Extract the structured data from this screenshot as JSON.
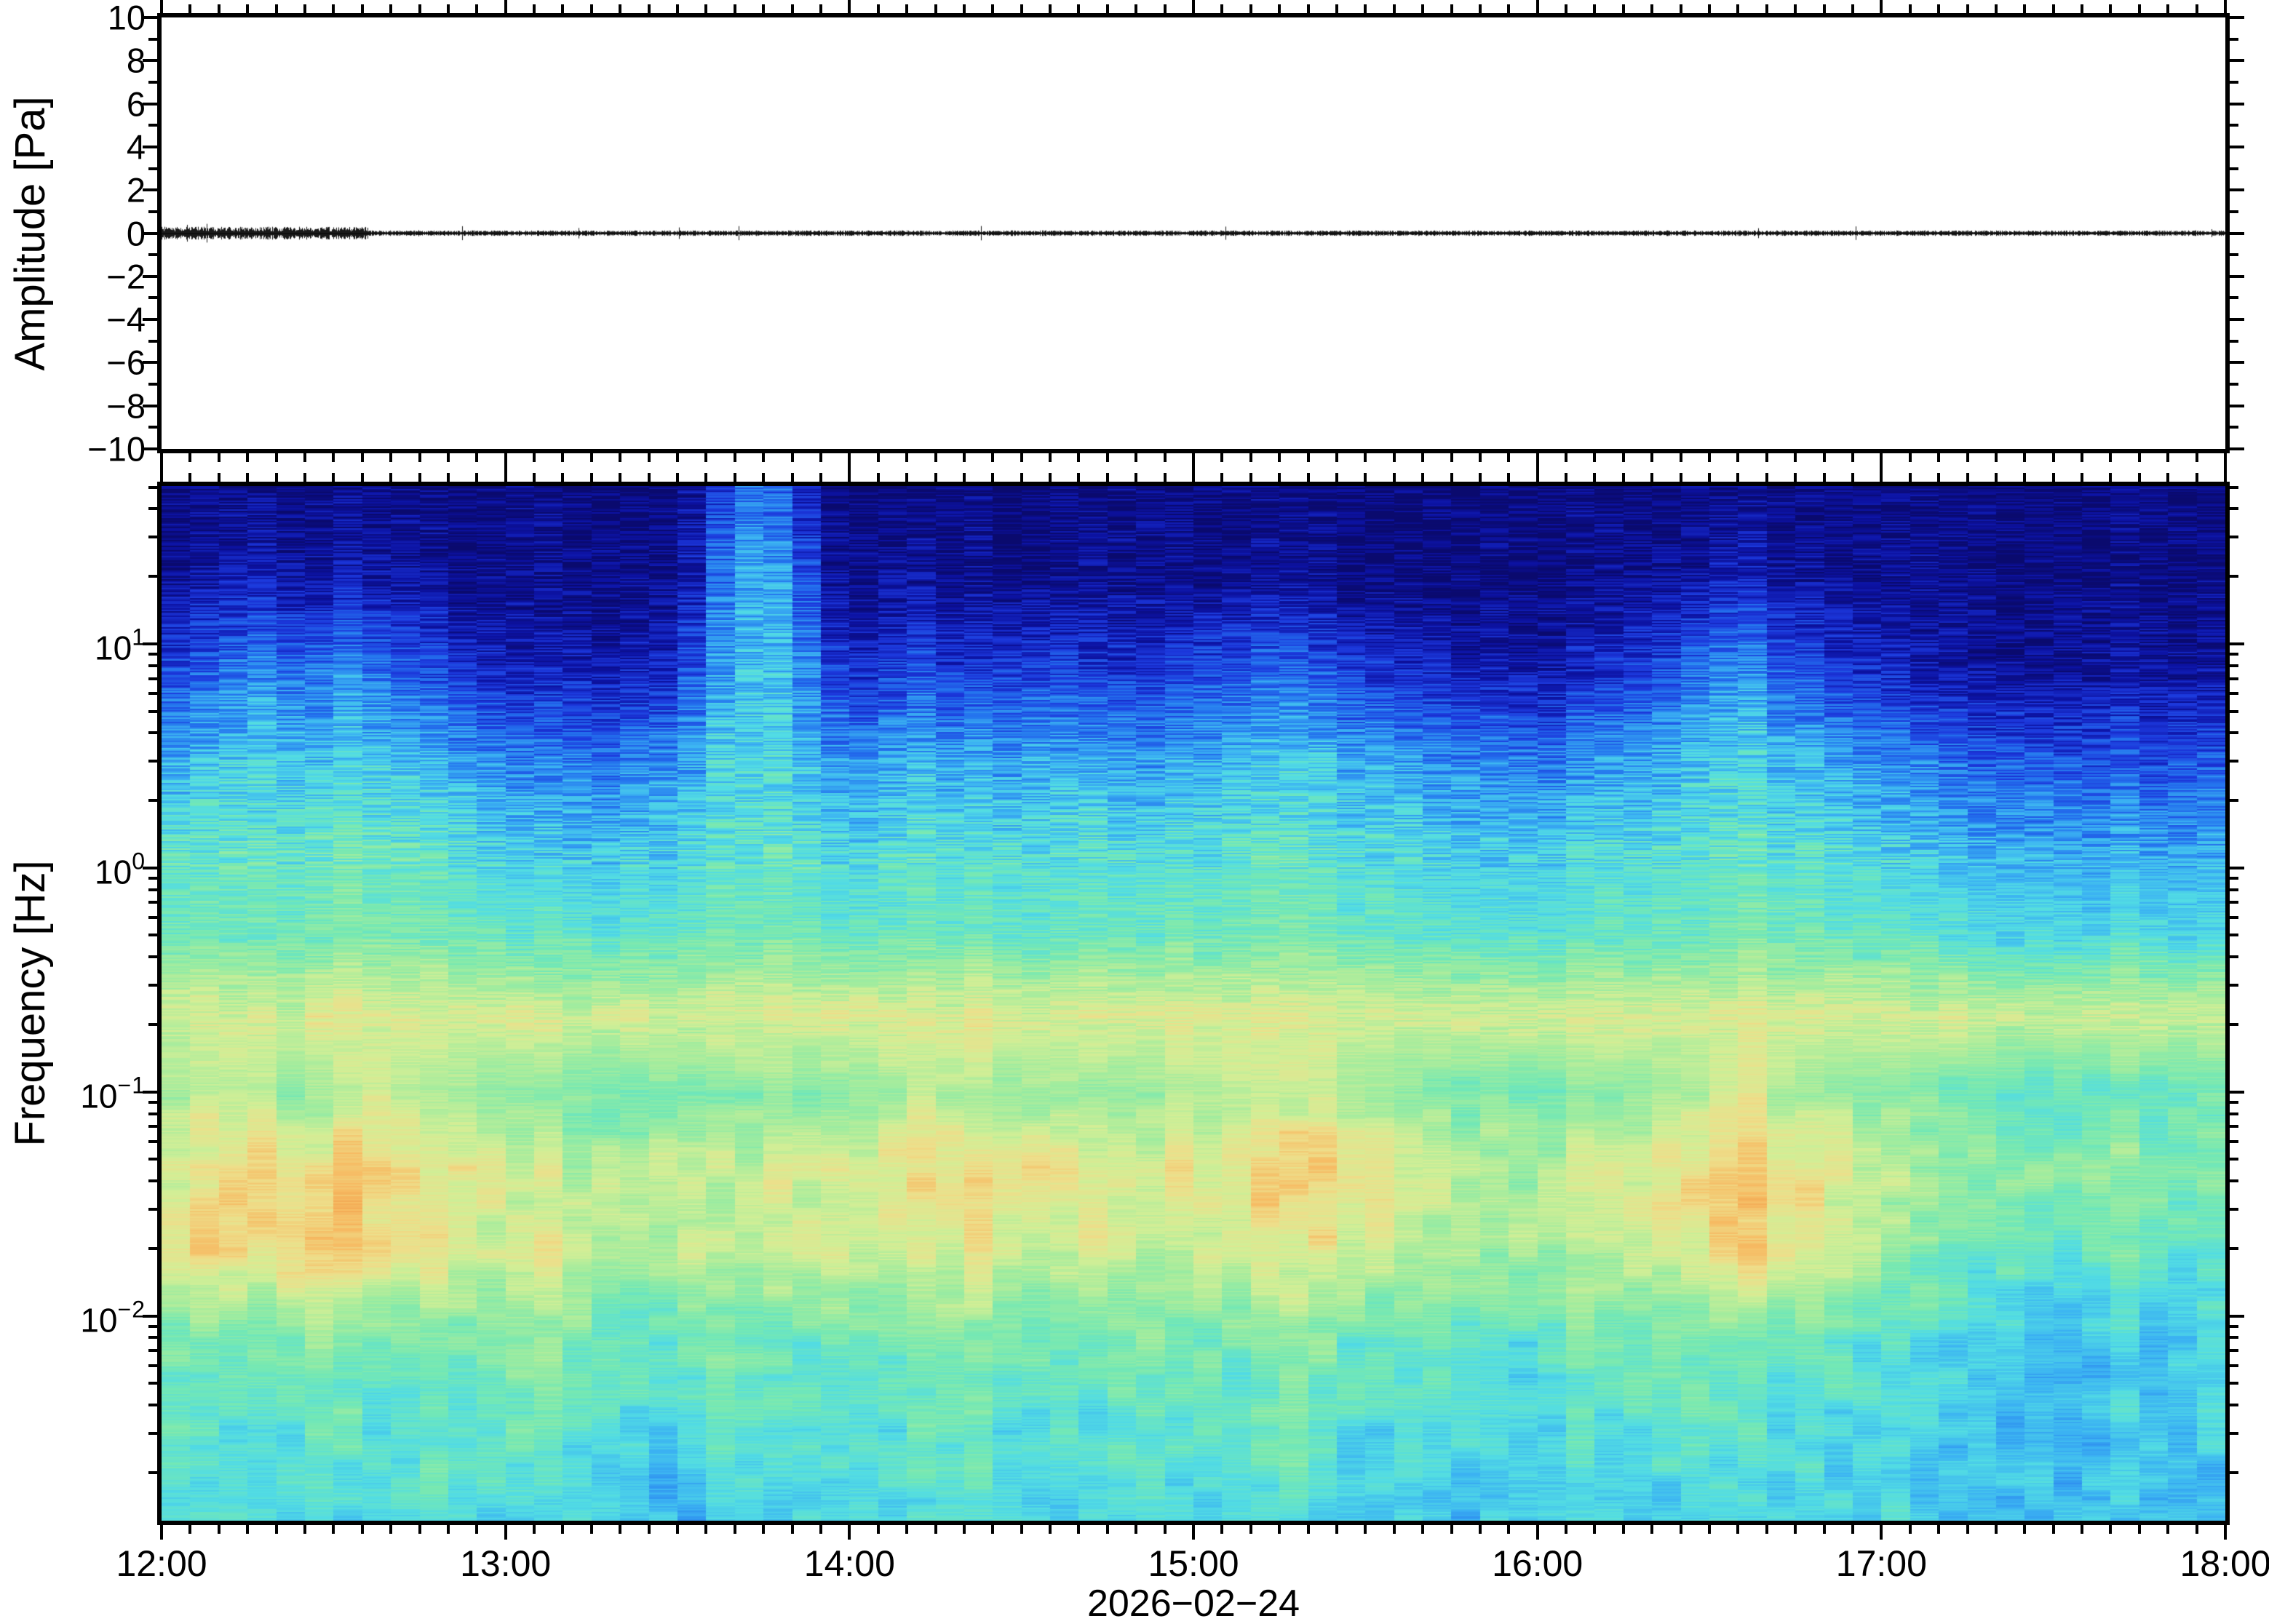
{
  "figure": {
    "background": "#ffffff",
    "frame_color": "#000000",
    "description": "Infrasound pressure waveform (top) and its spectrogram (bottom), 12:00 to 18:00 on 2026-02-24"
  },
  "top_plot": {
    "ylabel": "Amplitude [Pa]",
    "ylim": [
      -10,
      10
    ],
    "ytick_values": [
      10,
      8,
      6,
      4,
      2,
      0,
      -2,
      -4,
      -6,
      -8,
      -10
    ],
    "ytick_labels": [
      "10",
      "8",
      "6",
      "4",
      "2",
      "0",
      "−2",
      "−4",
      "−6",
      "−8",
      "−10"
    ],
    "yminor_step": 1,
    "trace_color": "#000000"
  },
  "bottom_plot": {
    "ylabel": "Frequency [Hz]",
    "xlabel_date": "2026−02−24",
    "flim_hz": [
      0.00122,
      50.6
    ],
    "ytick_labels": [
      {
        "v": 10,
        "base": "10",
        "exp": "1"
      },
      {
        "v": 1,
        "base": "10",
        "exp": "0"
      },
      {
        "v": 0.1,
        "base": "10",
        "exp": "−1"
      },
      {
        "v": 0.01,
        "base": "10",
        "exp": "−2"
      }
    ],
    "time_axis": {
      "labels": [
        "12:00",
        "13:00",
        "14:00",
        "15:00",
        "16:00",
        "17:00",
        "18:00"
      ],
      "span_minutes": 360,
      "major_minutes": 60,
      "minor_minutes": 5
    }
  },
  "chart_data": [
    {
      "type": "line",
      "name": "infrasound pressure waveform",
      "xlim": [
        "12:00",
        "18:00"
      ],
      "ylabel": "Amplitude [Pa]",
      "ylim": [
        -10,
        10
      ],
      "baseline_pa": 0,
      "noise_peak_pa": 0.15,
      "early_noise_peak_pa": 0.35,
      "note": "near-flat black noise trace at 0 Pa, slightly larger amplitude 12:00-12:45, rare small spikes"
    },
    {
      "type": "heatmap",
      "name": "spectrogram",
      "xlim": [
        "12:00",
        "18:00"
      ],
      "ylabel": "Frequency [Hz]",
      "flim_hz": [
        0.00122,
        50.6
      ],
      "bin_minutes": 5,
      "colormap": "blue-cyan-green-yellow-orange (jet-like)",
      "color_stops": [
        [
          0.0,
          "#0a0a6e"
        ],
        [
          0.1,
          "#0c12a2"
        ],
        [
          0.2,
          "#1c38dc"
        ],
        [
          0.3,
          "#2474ee"
        ],
        [
          0.4,
          "#3cb4f2"
        ],
        [
          0.48,
          "#52dce4"
        ],
        [
          0.56,
          "#74e8b4"
        ],
        [
          0.64,
          "#a2ec9e"
        ],
        [
          0.72,
          "#d2ee96"
        ],
        [
          0.8,
          "#eede8a"
        ],
        [
          0.88,
          "#f6bc64"
        ],
        [
          1.0,
          "#ee8c3a"
        ]
      ],
      "freq_nodes_hz": [
        50,
        20,
        8,
        3,
        1.2,
        0.5,
        0.22,
        0.1,
        0.045,
        0.02,
        0.008,
        0.003,
        0.0012
      ],
      "intensity_0_100": [
        [
          4,
          8,
          22,
          40,
          52,
          56,
          72,
          66,
          74,
          78,
          58,
          52,
          50
        ],
        [
          4,
          10,
          26,
          42,
          52,
          56,
          74,
          68,
          80,
          82,
          60,
          52,
          48
        ],
        [
          5,
          12,
          30,
          44,
          53,
          57,
          73,
          70,
          84,
          80,
          58,
          50,
          46
        ],
        [
          5,
          12,
          32,
          44,
          52,
          56,
          74,
          66,
          86,
          78,
          56,
          50,
          50
        ],
        [
          4,
          10,
          30,
          43,
          52,
          57,
          72,
          62,
          82,
          84,
          58,
          52,
          48
        ],
        [
          4,
          9,
          28,
          42,
          53,
          56,
          75,
          64,
          78,
          86,
          60,
          54,
          46
        ],
        [
          5,
          11,
          32,
          45,
          54,
          58,
          74,
          68,
          88,
          82,
          58,
          52,
          44
        ],
        [
          4,
          10,
          28,
          44,
          53,
          57,
          76,
          70,
          84,
          78,
          56,
          50,
          46
        ],
        [
          4,
          8,
          24,
          42,
          52,
          56,
          74,
          66,
          80,
          74,
          54,
          50,
          48
        ],
        [
          4,
          6,
          20,
          40,
          51,
          55,
          72,
          62,
          76,
          78,
          56,
          52,
          50
        ],
        [
          4,
          5,
          18,
          38,
          50,
          55,
          73,
          64,
          78,
          74,
          58,
          54,
          48
        ],
        [
          4,
          5,
          14,
          34,
          46,
          54,
          72,
          60,
          74,
          70,
          56,
          52,
          46
        ],
        [
          4,
          5,
          12,
          32,
          44,
          52,
          74,
          58,
          70,
          72,
          58,
          54,
          44
        ],
        [
          4,
          5,
          12,
          30,
          44,
          52,
          72,
          60,
          72,
          74,
          60,
          52,
          46
        ],
        [
          4,
          5,
          14,
          32,
          45,
          53,
          70,
          58,
          68,
          70,
          58,
          50,
          48
        ],
        [
          4,
          5,
          12,
          30,
          44,
          52,
          72,
          56,
          70,
          68,
          56,
          50,
          46
        ],
        [
          4,
          5,
          13,
          32,
          45,
          53,
          71,
          58,
          66,
          66,
          54,
          48,
          44
        ],
        [
          4,
          6,
          16,
          34,
          46,
          53,
          72,
          60,
          70,
          68,
          52,
          46,
          42
        ],
        [
          8,
          14,
          24,
          38,
          48,
          54,
          73,
          58,
          72,
          70,
          54,
          48,
          40
        ],
        [
          18,
          28,
          36,
          44,
          50,
          55,
          72,
          60,
          68,
          66,
          56,
          50,
          44
        ],
        [
          30,
          40,
          44,
          48,
          52,
          56,
          74,
          62,
          70,
          68,
          58,
          52,
          46
        ],
        [
          26,
          36,
          42,
          47,
          52,
          56,
          73,
          60,
          72,
          70,
          56,
          50,
          44
        ],
        [
          12,
          22,
          32,
          42,
          50,
          55,
          72,
          58,
          70,
          72,
          54,
          48,
          46
        ],
        [
          5,
          8,
          20,
          36,
          47,
          53,
          74,
          60,
          74,
          74,
          56,
          50,
          48
        ],
        [
          4,
          6,
          18,
          36,
          48,
          54,
          76,
          62,
          76,
          72,
          58,
          52,
          50
        ],
        [
          4,
          6,
          20,
          38,
          49,
          54,
          74,
          64,
          78,
          70,
          56,
          50,
          48
        ],
        [
          4,
          6,
          22,
          40,
          50,
          55,
          73,
          66,
          80,
          74,
          58,
          52,
          46
        ],
        [
          4,
          6,
          20,
          40,
          50,
          55,
          74,
          68,
          82,
          76,
          60,
          54,
          48
        ],
        [
          4,
          5,
          18,
          38,
          49,
          54,
          75,
          66,
          80,
          78,
          58,
          52,
          50
        ],
        [
          4,
          5,
          20,
          38,
          50,
          55,
          76,
          64,
          78,
          74,
          56,
          50,
          48
        ],
        [
          4,
          6,
          22,
          40,
          50,
          55,
          74,
          66,
          80,
          72,
          58,
          52,
          46
        ],
        [
          4,
          5,
          20,
          39,
          50,
          54,
          73,
          64,
          76,
          70,
          56,
          50,
          44
        ],
        [
          4,
          5,
          18,
          38,
          49,
          54,
          74,
          62,
          74,
          72,
          54,
          48,
          46
        ],
        [
          4,
          5,
          16,
          36,
          48,
          53,
          73,
          60,
          72,
          70,
          56,
          50,
          48
        ],
        [
          4,
          5,
          16,
          36,
          48,
          54,
          74,
          62,
          74,
          68,
          58,
          52,
          46
        ],
        [
          4,
          5,
          18,
          38,
          49,
          54,
          73,
          64,
          76,
          70,
          56,
          50,
          44
        ],
        [
          4,
          6,
          22,
          40,
          50,
          55,
          74,
          66,
          78,
          72,
          58,
          52,
          46
        ],
        [
          4,
          6,
          24,
          42,
          51,
          56,
          75,
          68,
          80,
          74,
          56,
          50,
          48
        ],
        [
          4,
          6,
          26,
          42,
          52,
          56,
          74,
          66,
          82,
          76,
          58,
          52,
          46
        ],
        [
          4,
          6,
          26,
          43,
          52,
          56,
          73,
          68,
          84,
          74,
          60,
          54,
          48
        ],
        [
          4,
          6,
          24,
          42,
          51,
          56,
          74,
          70,
          82,
          78,
          58,
          52,
          46
        ],
        [
          4,
          5,
          22,
          40,
          50,
          55,
          75,
          66,
          80,
          74,
          56,
          50,
          44
        ],
        [
          4,
          5,
          20,
          40,
          50,
          55,
          74,
          64,
          78,
          72,
          54,
          48,
          46
        ],
        [
          4,
          5,
          18,
          38,
          49,
          54,
          73,
          62,
          74,
          70,
          56,
          50,
          48
        ],
        [
          4,
          5,
          16,
          36,
          48,
          54,
          74,
          60,
          72,
          68,
          58,
          52,
          46
        ],
        [
          4,
          5,
          14,
          35,
          47,
          53,
          73,
          58,
          70,
          66,
          56,
          50,
          44
        ],
        [
          4,
          5,
          14,
          34,
          46,
          53,
          72,
          60,
          68,
          64,
          54,
          48,
          46
        ],
        [
          4,
          5,
          12,
          33,
          46,
          52,
          73,
          58,
          66,
          66,
          52,
          46,
          44
        ],
        [
          4,
          5,
          12,
          32,
          45,
          52,
          72,
          56,
          68,
          64,
          54,
          48,
          46
        ],
        [
          4,
          5,
          14,
          34,
          46,
          53,
          73,
          58,
          70,
          66,
          56,
          50,
          48
        ],
        [
          4,
          5,
          16,
          36,
          47,
          53,
          74,
          60,
          72,
          68,
          54,
          48,
          46
        ],
        [
          4,
          6,
          20,
          38,
          48,
          54,
          73,
          62,
          74,
          70,
          56,
          50,
          44
        ],
        [
          4,
          7,
          24,
          40,
          50,
          55,
          74,
          64,
          78,
          72,
          58,
          52,
          46
        ],
        [
          5,
          10,
          30,
          44,
          52,
          56,
          75,
          68,
          82,
          76,
          60,
          54,
          48
        ],
        [
          6,
          14,
          34,
          46,
          53,
          57,
          74,
          70,
          86,
          80,
          58,
          52,
          46
        ],
        [
          6,
          12,
          32,
          45,
          52,
          56,
          75,
          72,
          84,
          82,
          56,
          50,
          44
        ],
        [
          5,
          10,
          28,
          43,
          51,
          56,
          74,
          68,
          82,
          78,
          54,
          48,
          46
        ],
        [
          4,
          7,
          22,
          40,
          50,
          55,
          73,
          64,
          78,
          74,
          56,
          50,
          48
        ],
        [
          4,
          6,
          18,
          38,
          48,
          54,
          74,
          62,
          74,
          70,
          54,
          48,
          46
        ],
        [
          4,
          5,
          16,
          36,
          47,
          53,
          73,
          60,
          70,
          66,
          52,
          46,
          44
        ],
        [
          4,
          5,
          12,
          32,
          44,
          52,
          72,
          58,
          66,
          62,
          50,
          46,
          46
        ],
        [
          4,
          5,
          10,
          30,
          42,
          50,
          71,
          56,
          64,
          58,
          48,
          44,
          44
        ],
        [
          4,
          4,
          9,
          28,
          41,
          50,
          72,
          54,
          62,
          56,
          46,
          42,
          42
        ],
        [
          4,
          4,
          8,
          26,
          40,
          49,
          71,
          56,
          60,
          54,
          44,
          42,
          44
        ],
        [
          4,
          4,
          8,
          26,
          40,
          48,
          72,
          54,
          62,
          56,
          46,
          44,
          42
        ],
        [
          4,
          4,
          9,
          27,
          40,
          49,
          70,
          52,
          60,
          54,
          44,
          42,
          44
        ],
        [
          4,
          4,
          8,
          25,
          39,
          48,
          71,
          54,
          58,
          52,
          42,
          40,
          42
        ],
        [
          4,
          4,
          8,
          24,
          38,
          48,
          72,
          52,
          60,
          54,
          44,
          42,
          44
        ],
        [
          4,
          4,
          9,
          25,
          39,
          49,
          71,
          54,
          62,
          56,
          46,
          44,
          42
        ],
        [
          4,
          4,
          8,
          24,
          38,
          48,
          70,
          52,
          60,
          54,
          44,
          42,
          44
        ],
        [
          4,
          4,
          8,
          25,
          38,
          48,
          71,
          54,
          58,
          52,
          46,
          44,
          46
        ],
        [
          4,
          5,
          10,
          26,
          40,
          49,
          72,
          56,
          60,
          54,
          48,
          46,
          44
        ]
      ]
    }
  ]
}
